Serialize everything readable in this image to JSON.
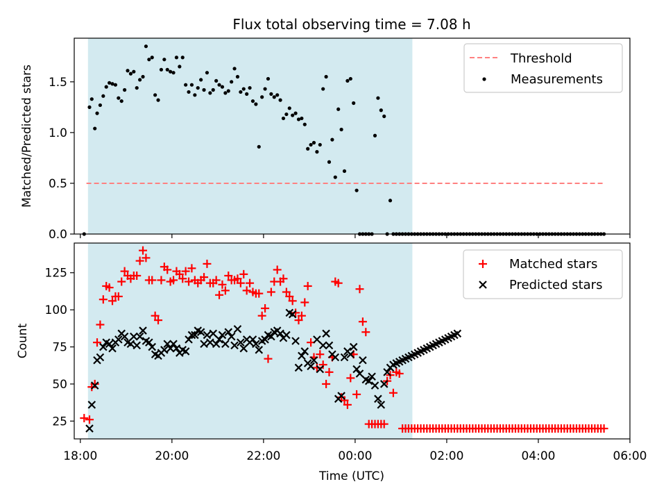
{
  "figure": {
    "title": "Flux total observing time = 7.08 h",
    "xlabel": "Time (UTC)",
    "x_tick_labels": [
      "18:00",
      "20:00",
      "22:00",
      "00:00",
      "02:00",
      "04:00",
      "06:00"
    ]
  },
  "colors": {
    "shade": "#d3eaf0",
    "threshold": "#ff8080",
    "measurements": "#000000",
    "matched": "#ff0000",
    "predicted": "#000000"
  },
  "chart_data": [
    {
      "type": "scatter",
      "ylabel": "Matched/Predicted stars",
      "xlim": [
        "17:52",
        "06:00"
      ],
      "ylim": [
        0,
        1.93
      ],
      "y_ticks": [
        0.0,
        0.5,
        1.0,
        1.5
      ],
      "y_tick_labels": [
        "0.0",
        "0.5",
        "1.0",
        "1.5"
      ],
      "shaded_span": [
        "18:10",
        "01:15"
      ],
      "legend_position": "upper right",
      "threshold": {
        "name": "Threshold",
        "value": 0.5,
        "x_range": [
          "18:08",
          "05:25"
        ],
        "style": "dashed"
      },
      "series": [
        {
          "name": "Measurements",
          "marker": "dot",
          "x": [
            "18:05",
            "18:12",
            "18:15",
            "18:19",
            "18:22",
            "18:26",
            "18:30",
            "18:34",
            "18:38",
            "18:42",
            "18:46",
            "18:50",
            "18:54",
            "18:58",
            "19:02",
            "19:06",
            "19:10",
            "19:14",
            "19:18",
            "19:22",
            "19:26",
            "19:30",
            "19:34",
            "19:38",
            "19:42",
            "19:46",
            "19:50",
            "19:54",
            "19:58",
            "20:02",
            "20:06",
            "20:10",
            "20:14",
            "20:18",
            "20:22",
            "20:26",
            "20:30",
            "20:34",
            "20:38",
            "20:42",
            "20:46",
            "20:50",
            "20:54",
            "20:58",
            "21:02",
            "21:06",
            "21:10",
            "21:14",
            "21:18",
            "21:22",
            "21:26",
            "21:30",
            "21:34",
            "21:38",
            "21:42",
            "21:46",
            "21:50",
            "21:54",
            "21:58",
            "22:02",
            "22:06",
            "22:10",
            "22:14",
            "22:18",
            "22:22",
            "22:26",
            "22:30",
            "22:34",
            "22:38",
            "22:42",
            "22:46",
            "22:50",
            "22:54",
            "22:58",
            "23:02",
            "23:06",
            "23:10",
            "23:14",
            "23:18",
            "23:22",
            "23:26",
            "23:30",
            "23:34",
            "23:38",
            "23:42",
            "23:46",
            "23:50",
            "23:54",
            "23:58",
            "00:02",
            "00:06",
            "00:10",
            "00:14",
            "00:18",
            "00:22",
            "00:26",
            "00:30",
            "00:34",
            "00:38",
            "00:42",
            "00:46",
            "00:50",
            "00:54",
            "00:58",
            "01:02",
            "01:06",
            "01:10",
            "01:14",
            "01:18",
            "01:22",
            "01:26",
            "01:30",
            "01:34",
            "01:38",
            "01:42",
            "01:46",
            "01:50",
            "01:54",
            "01:58",
            "02:02",
            "02:06",
            "02:10",
            "02:14",
            "02:18",
            "02:22",
            "02:26",
            "02:30",
            "02:34",
            "02:38",
            "02:42",
            "02:46",
            "02:50",
            "02:54",
            "02:58",
            "03:02",
            "03:06",
            "03:10",
            "03:14",
            "03:18",
            "03:22",
            "03:26",
            "03:30",
            "03:34",
            "03:38",
            "03:42",
            "03:46",
            "03:50",
            "03:54",
            "03:58",
            "04:02",
            "04:06",
            "04:10",
            "04:14",
            "04:18",
            "04:22",
            "04:26",
            "04:30",
            "04:34",
            "04:38",
            "04:42",
            "04:46",
            "04:50",
            "04:54",
            "04:58",
            "05:02",
            "05:06",
            "05:10",
            "05:14",
            "05:18",
            "05:22",
            "05:26"
          ],
          "y": [
            0.0,
            1.25,
            1.33,
            1.04,
            1.19,
            1.27,
            1.36,
            1.45,
            1.49,
            1.48,
            1.47,
            1.34,
            1.31,
            1.42,
            1.61,
            1.58,
            1.6,
            1.44,
            1.52,
            1.55,
            1.85,
            1.72,
            1.74,
            1.37,
            1.32,
            1.62,
            1.72,
            1.62,
            1.6,
            1.59,
            1.74,
            1.65,
            1.74,
            1.47,
            1.4,
            1.47,
            1.37,
            1.44,
            1.52,
            1.42,
            1.59,
            1.39,
            1.42,
            1.51,
            1.47,
            1.45,
            1.39,
            1.41,
            1.5,
            1.63,
            1.55,
            1.4,
            1.43,
            1.38,
            1.44,
            1.31,
            1.28,
            0.86,
            1.35,
            1.43,
            1.53,
            1.38,
            1.35,
            1.37,
            1.32,
            1.14,
            1.18,
            1.24,
            1.17,
            1.19,
            1.13,
            1.14,
            1.08,
            0.84,
            0.88,
            0.9,
            0.81,
            0.88,
            1.43,
            1.55,
            0.71,
            0.93,
            0.56,
            1.23,
            1.03,
            0.62,
            1.51,
            1.53,
            1.29,
            0.43,
            0.0,
            0.0,
            0.0,
            0.0,
            0.0,
            0.97,
            1.34,
            1.22,
            1.16,
            0.0,
            0.33,
            0.0,
            0.0,
            0.0,
            0.0,
            0.0,
            0.0,
            0.0,
            0.0,
            0.0,
            0.0,
            0.0,
            0.0,
            0.0,
            0.0,
            0.0,
            0.0,
            0.0,
            0.0,
            0.0,
            0.0,
            0.0,
            0.0,
            0.0,
            0.0,
            0.0,
            0.0,
            0.0,
            0.0,
            0.0,
            0.0,
            0.0,
            0.0,
            0.0,
            0.0,
            0.0,
            0.0,
            0.0,
            0.0,
            0.0,
            0.0,
            0.0,
            0.0,
            0.0,
            0.0,
            0.0,
            0.0,
            0.0,
            0.0,
            0.0,
            0.0,
            0.0,
            0.0,
            0.0,
            0.0,
            0.0,
            0.0,
            0.0,
            0.0,
            0.0,
            0.0,
            0.0,
            0.0,
            0.0,
            0.0,
            0.0,
            0.0,
            0.0,
            0.0,
            0.0,
            0.0
          ]
        }
      ]
    },
    {
      "type": "scatter",
      "ylabel": "Count",
      "xlim": [
        "17:52",
        "06:00"
      ],
      "ylim": [
        13,
        145
      ],
      "y_ticks": [
        25,
        50,
        75,
        100,
        125
      ],
      "y_tick_labels": [
        "25",
        "50",
        "75",
        "100",
        "125"
      ],
      "shaded_span": [
        "18:10",
        "01:15"
      ],
      "legend_position": "upper right",
      "series": [
        {
          "name": "Matched stars",
          "marker": "plus",
          "x": [
            "18:05",
            "18:12",
            "18:15",
            "18:19",
            "18:22",
            "18:26",
            "18:30",
            "18:34",
            "18:38",
            "18:42",
            "18:46",
            "18:50",
            "18:54",
            "18:58",
            "19:02",
            "19:06",
            "19:10",
            "19:14",
            "19:18",
            "19:22",
            "19:26",
            "19:30",
            "19:34",
            "19:38",
            "19:42",
            "19:46",
            "19:50",
            "19:54",
            "19:58",
            "20:02",
            "20:06",
            "20:10",
            "20:14",
            "20:18",
            "20:22",
            "20:26",
            "20:30",
            "20:34",
            "20:38",
            "20:42",
            "20:46",
            "20:50",
            "20:54",
            "20:58",
            "21:02",
            "21:06",
            "21:10",
            "21:14",
            "21:18",
            "21:22",
            "21:26",
            "21:30",
            "21:34",
            "21:38",
            "21:42",
            "21:46",
            "21:50",
            "21:54",
            "21:58",
            "22:02",
            "22:06",
            "22:10",
            "22:14",
            "22:18",
            "22:22",
            "22:26",
            "22:30",
            "22:34",
            "22:38",
            "22:42",
            "22:46",
            "22:50",
            "22:54",
            "22:58",
            "23:02",
            "23:06",
            "23:10",
            "23:14",
            "23:18",
            "23:22",
            "23:26",
            "23:30",
            "23:34",
            "23:38",
            "23:42",
            "23:46",
            "23:50",
            "23:54",
            "23:58",
            "00:02",
            "00:06",
            "00:10",
            "00:14",
            "00:18",
            "00:22",
            "00:26",
            "00:30",
            "00:34",
            "00:38",
            "00:42",
            "00:46",
            "00:50",
            "00:54",
            "00:58",
            "01:02",
            "01:06",
            "01:10",
            "01:14",
            "01:18",
            "01:22",
            "01:26",
            "01:30",
            "01:34",
            "01:38",
            "01:42",
            "01:46",
            "01:50",
            "01:54",
            "01:58",
            "02:02",
            "02:06",
            "02:10",
            "02:14",
            "02:18",
            "02:22",
            "02:26",
            "02:30",
            "02:34",
            "02:38",
            "02:42",
            "02:46",
            "02:50",
            "02:54",
            "02:58",
            "03:02",
            "03:06",
            "03:10",
            "03:14",
            "03:18",
            "03:22",
            "03:26",
            "03:30",
            "03:34",
            "03:38",
            "03:42",
            "03:46",
            "03:50",
            "03:54",
            "03:58",
            "04:02",
            "04:06",
            "04:10",
            "04:14",
            "04:18",
            "04:22",
            "04:26",
            "04:30",
            "04:34",
            "04:38",
            "04:42",
            "04:46",
            "04:50",
            "04:54",
            "04:58",
            "05:02",
            "05:06",
            "05:10",
            "05:14",
            "05:18",
            "05:22",
            "05:26"
          ],
          "y": [
            27,
            26,
            48,
            50,
            78,
            90,
            107,
            116,
            115,
            106,
            109,
            109,
            119,
            126,
            123,
            121,
            123,
            123,
            133,
            140,
            135,
            120,
            120,
            96,
            93,
            120,
            129,
            127,
            119,
            120,
            126,
            124,
            121,
            126,
            119,
            128,
            120,
            118,
            120,
            122,
            131,
            118,
            118,
            120,
            110,
            117,
            113,
            123,
            120,
            120,
            121,
            118,
            124,
            113,
            118,
            112,
            111,
            111,
            96,
            101,
            67,
            112,
            119,
            127,
            119,
            121,
            112,
            109,
            106,
            98,
            93,
            96,
            105,
            116,
            78,
            68,
            61,
            70,
            63,
            50,
            58,
            68,
            119,
            118,
            41,
            39,
            36,
            54,
            70,
            43,
            114,
            92,
            85,
            23,
            23,
            23,
            23,
            23,
            23,
            52,
            56,
            44,
            58,
            57,
            20,
            20,
            20,
            20,
            20,
            20,
            20,
            20,
            20,
            20,
            20,
            20,
            20,
            20,
            20,
            20,
            20,
            20,
            20,
            20,
            20,
            20,
            20,
            20,
            20,
            20,
            20,
            20,
            20,
            20,
            20,
            20,
            20,
            20,
            20,
            20,
            20,
            20,
            20,
            20,
            20,
            20,
            20,
            20,
            20,
            20,
            20,
            20,
            20,
            20,
            20,
            20,
            20,
            20,
            20,
            20,
            20,
            20,
            20,
            20,
            20,
            20,
            20,
            20,
            20,
            20,
            20
          ]
        },
        {
          "name": "Predicted stars",
          "marker": "x",
          "x": [
            "18:12",
            "18:15",
            "18:19",
            "18:22",
            "18:26",
            "18:30",
            "18:34",
            "18:38",
            "18:42",
            "18:46",
            "18:50",
            "18:54",
            "18:58",
            "19:02",
            "19:06",
            "19:10",
            "19:14",
            "19:18",
            "19:22",
            "19:26",
            "19:30",
            "19:34",
            "19:38",
            "19:42",
            "19:46",
            "19:50",
            "19:54",
            "19:58",
            "20:02",
            "20:06",
            "20:10",
            "20:14",
            "20:18",
            "20:22",
            "20:26",
            "20:30",
            "20:34",
            "20:38",
            "20:42",
            "20:46",
            "20:50",
            "20:54",
            "20:58",
            "21:02",
            "21:06",
            "21:10",
            "21:14",
            "21:18",
            "21:22",
            "21:26",
            "21:30",
            "21:34",
            "21:38",
            "21:42",
            "21:46",
            "21:50",
            "21:54",
            "21:58",
            "22:02",
            "22:06",
            "22:10",
            "22:14",
            "22:18",
            "22:22",
            "22:26",
            "22:30",
            "22:34",
            "22:38",
            "22:42",
            "22:46",
            "22:50",
            "22:54",
            "22:58",
            "23:02",
            "23:06",
            "23:10",
            "23:14",
            "23:18",
            "23:22",
            "23:26",
            "23:30",
            "23:34",
            "23:38",
            "23:42",
            "23:46",
            "23:50",
            "23:54",
            "23:58",
            "00:02",
            "00:06",
            "00:10",
            "00:14",
            "00:18",
            "00:22",
            "00:26",
            "00:30",
            "00:34",
            "00:38",
            "00:42",
            "00:46",
            "00:50",
            "00:54",
            "00:58",
            "01:02",
            "01:06",
            "01:10",
            "01:14",
            "01:18",
            "01:22",
            "01:26",
            "01:30",
            "01:34",
            "01:38",
            "01:42",
            "01:46",
            "01:50",
            "01:54",
            "01:58",
            "02:02",
            "02:06",
            "02:10",
            "02:14"
          ],
          "y": [
            20,
            36,
            49,
            66,
            68,
            75,
            78,
            77,
            74,
            78,
            80,
            84,
            82,
            78,
            77,
            82,
            76,
            82,
            86,
            79,
            78,
            75,
            70,
            69,
            71,
            73,
            77,
            74,
            77,
            74,
            71,
            73,
            72,
            80,
            83,
            83,
            86,
            85,
            77,
            83,
            78,
            84,
            77,
            80,
            83,
            77,
            85,
            82,
            76,
            87,
            78,
            74,
            80,
            78,
            80,
            77,
            73,
            79,
            80,
            83,
            82,
            85,
            86,
            84,
            81,
            83,
            98,
            97,
            79,
            61,
            69,
            72,
            64,
            62,
            66,
            80,
            60,
            76,
            84,
            76,
            70,
            68,
            40,
            42,
            68,
            72,
            70,
            75,
            60,
            57,
            66,
            53,
            52,
            55,
            49,
            40,
            36,
            50,
            58,
            61,
            63,
            64,
            65,
            66,
            67,
            68,
            69,
            70,
            71,
            72,
            73,
            74,
            75,
            76,
            77,
            78,
            79,
            80,
            81,
            82,
            83,
            84
          ]
        }
      ]
    }
  ]
}
